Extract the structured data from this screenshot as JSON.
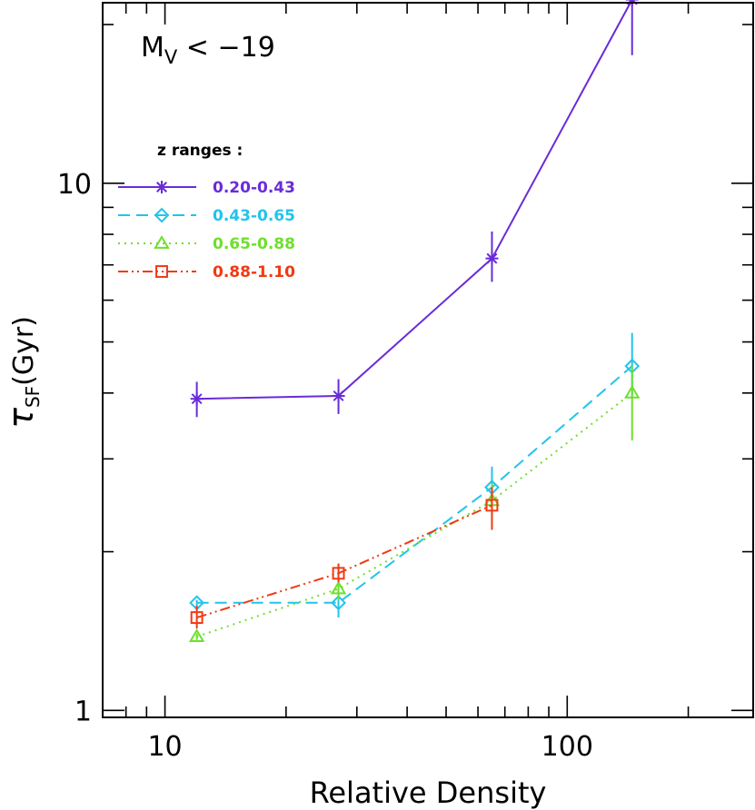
{
  "chart_data": {
    "type": "line",
    "annotation": {
      "main": "M",
      "sub": "V",
      "rest": " <  −19"
    },
    "xlabel": "Relative Density",
    "ylabel": {
      "main": "τ",
      "sub": "SF",
      "rest": "(Gyr)"
    },
    "x_scale": "log",
    "y_scale": "log",
    "xlim": [
      7,
      290
    ],
    "ylim": [
      0.97,
      22
    ],
    "x_tick_labels": [
      {
        "value": 10,
        "label": "10"
      },
      {
        "value": 100,
        "label": "100"
      }
    ],
    "y_tick_labels": [
      {
        "value": 1,
        "label": "1"
      },
      {
        "value": 10,
        "label": "10"
      }
    ],
    "legend": {
      "title": "z ranges :",
      "position": "top-left"
    },
    "series": [
      {
        "name": "0.20-0.43",
        "color": "#6a2bd9",
        "dash": "solid",
        "marker": "asterisk",
        "x": [
          12,
          27,
          65,
          145
        ],
        "y": [
          3.9,
          3.95,
          7.2,
          22.3
        ],
        "err_low": [
          3.6,
          3.65,
          6.5,
          17.5
        ],
        "err_high": [
          4.2,
          4.25,
          8.1,
          27.0
        ]
      },
      {
        "name": "0.43-0.65",
        "color": "#22c4ea",
        "dash": "dashed",
        "marker": "diamond",
        "x": [
          12,
          27,
          65,
          145
        ],
        "y": [
          1.6,
          1.6,
          2.65,
          4.5
        ],
        "err_low": [
          1.58,
          1.5,
          2.45,
          3.9
        ],
        "err_high": [
          1.62,
          1.7,
          2.9,
          5.2
        ]
      },
      {
        "name": "0.65-0.88",
        "color": "#6de02d",
        "dash": "dotted",
        "marker": "triangle",
        "x": [
          12,
          27,
          65,
          145
        ],
        "y": [
          1.38,
          1.7,
          2.5,
          4.0
        ],
        "err_low": [
          1.36,
          1.62,
          2.35,
          3.25
        ],
        "err_high": [
          1.4,
          1.78,
          2.7,
          4.5
        ]
      },
      {
        "name": "0.88-1.10",
        "color": "#f03a12",
        "dash": "dash-dot-dot",
        "marker": "square",
        "x": [
          12,
          27,
          65
        ],
        "y": [
          1.5,
          1.82,
          2.45
        ],
        "err_low": [
          1.43,
          1.75,
          2.2
        ],
        "err_high": [
          1.58,
          1.9,
          2.65
        ]
      }
    ]
  }
}
